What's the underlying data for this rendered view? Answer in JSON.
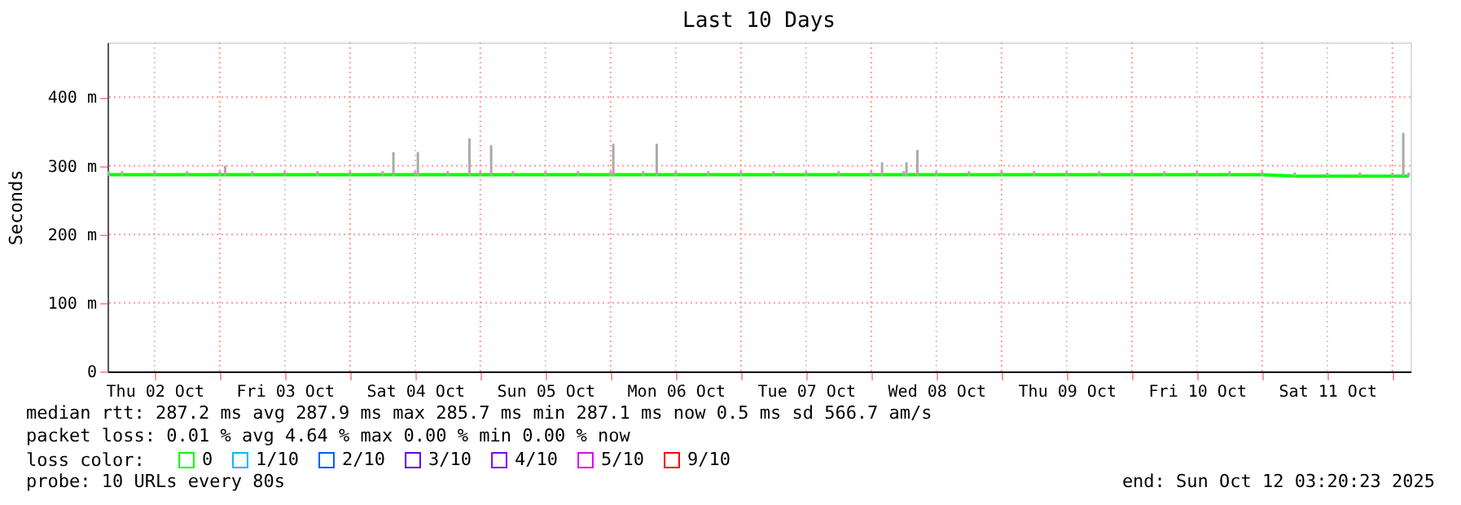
{
  "chart_data": {
    "type": "line",
    "title": "Last 10 Days",
    "ylabel": "Seconds",
    "xlim": [
      "2025-10-02T03:20",
      "2025-10-12T03:20"
    ],
    "xticks": [
      {
        "value": "2025-10-02T12:00",
        "label": "Thu 02 Oct"
      },
      {
        "value": "2025-10-03T00:00",
        "label": null
      },
      {
        "value": "2025-10-03T12:00",
        "label": "Fri 03 Oct"
      },
      {
        "value": "2025-10-04T00:00",
        "label": null
      },
      {
        "value": "2025-10-04T12:00",
        "label": "Sat 04 Oct"
      },
      {
        "value": "2025-10-05T00:00",
        "label": null
      },
      {
        "value": "2025-10-05T12:00",
        "label": "Sun 05 Oct"
      },
      {
        "value": "2025-10-06T00:00",
        "label": null
      },
      {
        "value": "2025-10-06T12:00",
        "label": "Mon 06 Oct"
      },
      {
        "value": "2025-10-07T00:00",
        "label": null
      },
      {
        "value": "2025-10-07T12:00",
        "label": "Tue 07 Oct"
      },
      {
        "value": "2025-10-08T00:00",
        "label": null
      },
      {
        "value": "2025-10-08T12:00",
        "label": "Wed 08 Oct"
      },
      {
        "value": "2025-10-09T00:00",
        "label": null
      },
      {
        "value": "2025-10-09T12:00",
        "label": "Thu 09 Oct"
      },
      {
        "value": "2025-10-10T00:00",
        "label": null
      },
      {
        "value": "2025-10-10T12:00",
        "label": "Fri 10 Oct"
      },
      {
        "value": "2025-10-11T00:00",
        "label": null
      },
      {
        "value": "2025-10-11T12:00",
        "label": "Sat 11 Oct"
      },
      {
        "value": "2025-10-12T00:00",
        "label": null
      }
    ],
    "ylim": [
      0,
      480
    ],
    "yticks": [
      0,
      {
        "value": 100,
        "label": "100 m"
      },
      {
        "value": 200,
        "label": "200 m"
      },
      {
        "value": 300,
        "label": "300 m"
      },
      {
        "value": 400,
        "label": "400 m"
      }
    ],
    "grid": true,
    "legend": "bottom",
    "legend_title": "loss color:",
    "series": [
      {
        "name": "0",
        "color": "#00ff00",
        "x": [
          "2025-10-02T03:30",
          "2025-10-02T06:00",
          "2025-10-02T12:00",
          "2025-10-02T18:00",
          "2025-10-03T00:00",
          "2025-10-03T01:00",
          "2025-10-03T06:00",
          "2025-10-03T12:00",
          "2025-10-03T18:00",
          "2025-10-04T00:00",
          "2025-10-04T06:00",
          "2025-10-04T08:00",
          "2025-10-04T12:00",
          "2025-10-04T12:30",
          "2025-10-04T18:00",
          "2025-10-04T22:00",
          "2025-10-05T00:00",
          "2025-10-05T02:00",
          "2025-10-05T06:00",
          "2025-10-05T12:00",
          "2025-10-05T18:00",
          "2025-10-06T00:00",
          "2025-10-06T00:30",
          "2025-10-06T06:00",
          "2025-10-06T08:30",
          "2025-10-06T12:00",
          "2025-10-06T18:00",
          "2025-10-07T00:00",
          "2025-10-07T06:00",
          "2025-10-07T12:00",
          "2025-10-07T18:00",
          "2025-10-08T00:00",
          "2025-10-08T02:00",
          "2025-10-08T06:00",
          "2025-10-08T06:30",
          "2025-10-08T08:30",
          "2025-10-08T12:00",
          "2025-10-08T18:00",
          "2025-10-09T00:00",
          "2025-10-09T06:00",
          "2025-10-09T12:00",
          "2025-10-09T18:00",
          "2025-10-10T00:00",
          "2025-10-10T06:00",
          "2025-10-10T12:00",
          "2025-10-10T18:00",
          "2025-10-11T00:00",
          "2025-10-11T06:00",
          "2025-10-11T12:00",
          "2025-10-11T18:00",
          "2025-10-12T00:00",
          "2025-10-12T02:00",
          "2025-10-12T03:00"
        ],
        "values": [
          287,
          287,
          287,
          287,
          287,
          287,
          287,
          287,
          287,
          287,
          287,
          287,
          287,
          287,
          287,
          287,
          287,
          287,
          287,
          287,
          287,
          287,
          287,
          287,
          287,
          287,
          287,
          287,
          287,
          287,
          287,
          287,
          287,
          287,
          287,
          287,
          287,
          287,
          287,
          287,
          287,
          287,
          287,
          287,
          287,
          287,
          287,
          285,
          285,
          285,
          285,
          285,
          285
        ],
        "errors": [
          [
            285,
            292
          ],
          [
            285,
            292
          ],
          [
            285,
            292
          ],
          [
            285,
            292
          ],
          [
            285,
            292
          ],
          [
            285,
            300
          ],
          [
            285,
            292
          ],
          [
            285,
            292
          ],
          [
            285,
            292
          ],
          [
            285,
            292
          ],
          [
            285,
            292
          ],
          [
            285,
            320
          ],
          [
            285,
            292
          ],
          [
            285,
            320
          ],
          [
            285,
            292
          ],
          [
            285,
            340
          ],
          [
            285,
            292
          ],
          [
            285,
            330
          ],
          [
            285,
            292
          ],
          [
            285,
            292
          ],
          [
            285,
            292
          ],
          [
            285,
            292
          ],
          [
            285,
            332
          ],
          [
            285,
            292
          ],
          [
            285,
            332
          ],
          [
            285,
            292
          ],
          [
            285,
            292
          ],
          [
            285,
            292
          ],
          [
            285,
            292
          ],
          [
            285,
            292
          ],
          [
            285,
            292
          ],
          [
            285,
            292
          ],
          [
            285,
            305
          ],
          [
            285,
            292
          ],
          [
            285,
            305
          ],
          [
            285,
            323
          ],
          [
            285,
            292
          ],
          [
            285,
            292
          ],
          [
            285,
            292
          ],
          [
            285,
            292
          ],
          [
            285,
            292
          ],
          [
            285,
            292
          ],
          [
            285,
            292
          ],
          [
            285,
            292
          ],
          [
            285,
            292
          ],
          [
            285,
            292
          ],
          [
            285,
            292
          ],
          [
            284,
            290
          ],
          [
            284,
            290
          ],
          [
            284,
            290
          ],
          [
            284,
            290
          ],
          [
            284,
            348
          ],
          [
            284,
            290
          ]
        ]
      },
      {
        "name": "1/10",
        "color": "#00b8ff",
        "values": [
          null
        ]
      },
      {
        "name": "2/10",
        "color": "#0059ff",
        "values": [
          null
        ]
      },
      {
        "name": "3/10",
        "color": "#5e00ff",
        "values": [
          null
        ]
      },
      {
        "name": "4/10",
        "color": "#7e00ff",
        "values": [
          null
        ]
      },
      {
        "name": "5/10",
        "color": "#dd00ff",
        "values": [
          null
        ]
      },
      {
        "name": "9/10",
        "color": "#ff0000",
        "values": [
          null
        ]
      }
    ],
    "annotations": [
      "median rtt:  287.2 ms avg  287.9 ms max  285.7 ms min  287.1 ms now  0.5 ms sd  566.7   am/s",
      "packet loss: 0.01 % avg  4.64 % max  0.00 % min  0.00 % now",
      "probe:       10 URLs every 80s",
      "end: Sun Oct 12 03:20:23 2025"
    ]
  }
}
